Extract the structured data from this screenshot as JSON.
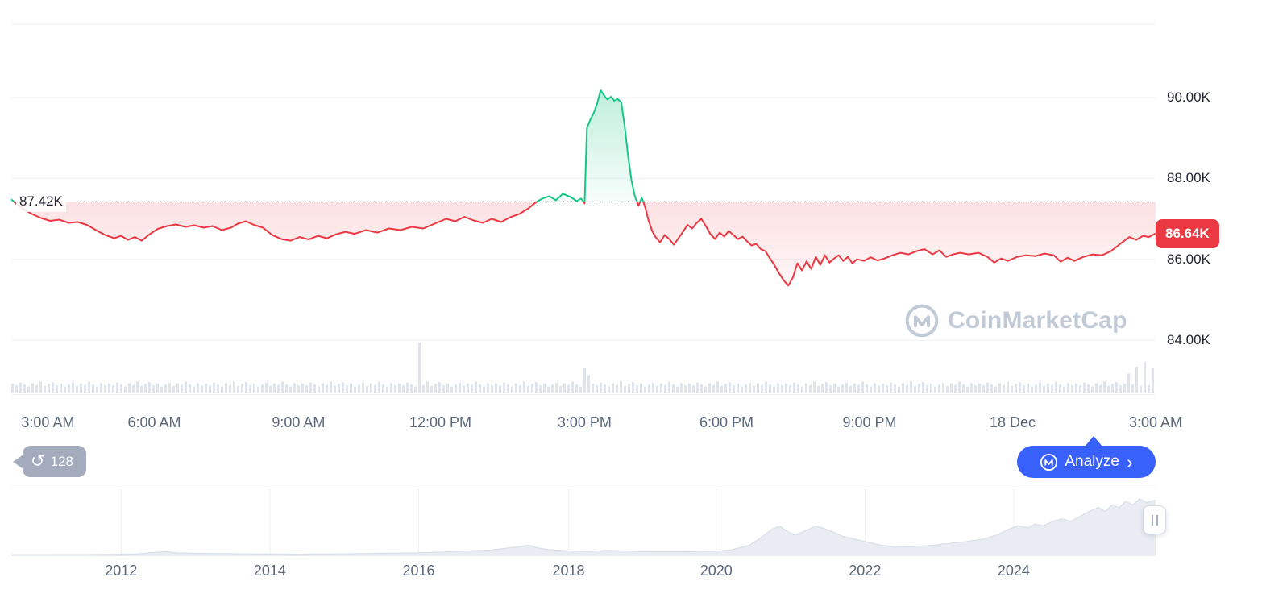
{
  "ui": {
    "history_count": "128",
    "analyze_label": "Analyze",
    "watermark": "CoinMarketCap",
    "icons": {
      "history": "↺",
      "chevron_right": "›"
    }
  },
  "colors": {
    "up": "#16c784",
    "down": "#ea3943",
    "accent_blue": "#3861fb",
    "grid": "#edf0f4",
    "volume": "#dfe3ec",
    "mini_fill": "#e9edf3",
    "mini_stroke": "#d9dee8",
    "axis_text": "#5b6779",
    "price_text": "#222531",
    "pill_bg": "#a3abbd",
    "watermark": "#c3cad7",
    "ref_line": "#4a4f5c",
    "badge_bg": "#ea3943"
  },
  "chart_data": [
    {
      "type": "line",
      "legend": "none",
      "grid": "horizontal",
      "ylim": [
        82.6,
        92.2
      ],
      "y_ticks": [
        {
          "label": "90.00K",
          "value": 90
        },
        {
          "label": "88.00K",
          "value": 88
        },
        {
          "label": "86.00K",
          "value": 86
        },
        {
          "label": "84.00K",
          "value": 84
        }
      ],
      "x_ticks": [
        {
          "label": "3:00 AM",
          "f": 0.032
        },
        {
          "label": "6:00 AM",
          "f": 0.125
        },
        {
          "label": "9:00 AM",
          "f": 0.251
        },
        {
          "label": "12:00 PM",
          "f": 0.375
        },
        {
          "label": "3:00 PM",
          "f": 0.501
        },
        {
          "label": "6:00 PM",
          "f": 0.625
        },
        {
          "label": "9:00 PM",
          "f": 0.75
        },
        {
          "label": "18 Dec",
          "f": 0.875
        },
        {
          "label": "3:00 AM",
          "f": 1.0
        }
      ],
      "ref_line": {
        "label": "87.42K",
        "value": 87.42
      },
      "last_price": {
        "label": "86.64K",
        "value": 86.64
      },
      "points": [
        [
          0.0,
          87.48
        ],
        [
          0.004,
          87.38
        ],
        [
          0.01,
          87.25
        ],
        [
          0.018,
          87.12
        ],
        [
          0.026,
          87.02
        ],
        [
          0.034,
          86.95
        ],
        [
          0.042,
          86.98
        ],
        [
          0.05,
          86.9
        ],
        [
          0.058,
          86.92
        ],
        [
          0.066,
          86.85
        ],
        [
          0.074,
          86.72
        ],
        [
          0.082,
          86.6
        ],
        [
          0.09,
          86.52
        ],
        [
          0.096,
          86.58
        ],
        [
          0.102,
          86.48
        ],
        [
          0.108,
          86.55
        ],
        [
          0.114,
          86.46
        ],
        [
          0.12,
          86.6
        ],
        [
          0.128,
          86.75
        ],
        [
          0.136,
          86.82
        ],
        [
          0.144,
          86.86
        ],
        [
          0.152,
          86.8
        ],
        [
          0.16,
          86.84
        ],
        [
          0.168,
          86.78
        ],
        [
          0.176,
          86.82
        ],
        [
          0.184,
          86.72
        ],
        [
          0.192,
          86.78
        ],
        [
          0.198,
          86.88
        ],
        [
          0.205,
          86.94
        ],
        [
          0.212,
          86.85
        ],
        [
          0.22,
          86.78
        ],
        [
          0.228,
          86.6
        ],
        [
          0.236,
          86.5
        ],
        [
          0.244,
          86.46
        ],
        [
          0.252,
          86.55
        ],
        [
          0.26,
          86.49
        ],
        [
          0.268,
          86.58
        ],
        [
          0.276,
          86.52
        ],
        [
          0.284,
          86.62
        ],
        [
          0.292,
          86.68
        ],
        [
          0.3,
          86.63
        ],
        [
          0.31,
          86.72
        ],
        [
          0.32,
          86.66
        ],
        [
          0.33,
          86.76
        ],
        [
          0.34,
          86.72
        ],
        [
          0.35,
          86.8
        ],
        [
          0.36,
          86.76
        ],
        [
          0.37,
          86.88
        ],
        [
          0.38,
          87.0
        ],
        [
          0.388,
          86.94
        ],
        [
          0.396,
          87.05
        ],
        [
          0.404,
          86.96
        ],
        [
          0.412,
          86.9
        ],
        [
          0.42,
          87.0
        ],
        [
          0.428,
          86.92
        ],
        [
          0.436,
          87.04
        ],
        [
          0.444,
          87.12
        ],
        [
          0.452,
          87.26
        ],
        [
          0.458,
          87.4
        ],
        [
          0.464,
          87.5
        ],
        [
          0.47,
          87.56
        ],
        [
          0.476,
          87.46
        ],
        [
          0.482,
          87.62
        ],
        [
          0.488,
          87.55
        ],
        [
          0.494,
          87.44
        ],
        [
          0.498,
          87.5
        ],
        [
          0.501,
          87.38
        ],
        [
          0.503,
          89.25
        ],
        [
          0.506,
          89.45
        ],
        [
          0.509,
          89.62
        ],
        [
          0.512,
          89.85
        ],
        [
          0.515,
          90.18
        ],
        [
          0.518,
          90.05
        ],
        [
          0.521,
          89.95
        ],
        [
          0.524,
          90.02
        ],
        [
          0.527,
          89.92
        ],
        [
          0.53,
          89.96
        ],
        [
          0.533,
          89.88
        ],
        [
          0.536,
          89.3
        ],
        [
          0.539,
          88.55
        ],
        [
          0.542,
          87.95
        ],
        [
          0.545,
          87.55
        ],
        [
          0.548,
          87.32
        ],
        [
          0.551,
          87.52
        ],
        [
          0.554,
          87.28
        ],
        [
          0.557,
          86.95
        ],
        [
          0.56,
          86.7
        ],
        [
          0.563,
          86.55
        ],
        [
          0.567,
          86.42
        ],
        [
          0.571,
          86.6
        ],
        [
          0.575,
          86.5
        ],
        [
          0.579,
          86.36
        ],
        [
          0.583,
          86.52
        ],
        [
          0.587,
          86.68
        ],
        [
          0.591,
          86.85
        ],
        [
          0.595,
          86.76
        ],
        [
          0.599,
          86.9
        ],
        [
          0.603,
          87.0
        ],
        [
          0.607,
          86.82
        ],
        [
          0.611,
          86.62
        ],
        [
          0.615,
          86.5
        ],
        [
          0.619,
          86.66
        ],
        [
          0.623,
          86.56
        ],
        [
          0.627,
          86.7
        ],
        [
          0.631,
          86.6
        ],
        [
          0.635,
          86.5
        ],
        [
          0.639,
          86.56
        ],
        [
          0.643,
          86.44
        ],
        [
          0.647,
          86.34
        ],
        [
          0.651,
          86.38
        ],
        [
          0.655,
          86.25
        ],
        [
          0.659,
          86.2
        ],
        [
          0.663,
          86.02
        ],
        [
          0.667,
          85.85
        ],
        [
          0.671,
          85.65
        ],
        [
          0.675,
          85.48
        ],
        [
          0.679,
          85.35
        ],
        [
          0.683,
          85.55
        ],
        [
          0.687,
          85.9
        ],
        [
          0.691,
          85.72
        ],
        [
          0.695,
          85.95
        ],
        [
          0.699,
          85.76
        ],
        [
          0.703,
          86.06
        ],
        [
          0.707,
          85.86
        ],
        [
          0.711,
          86.1
        ],
        [
          0.715,
          85.92
        ],
        [
          0.719,
          86.02
        ],
        [
          0.723,
          86.1
        ],
        [
          0.727,
          85.96
        ],
        [
          0.731,
          86.06
        ],
        [
          0.735,
          85.9
        ],
        [
          0.739,
          86.0
        ],
        [
          0.745,
          85.96
        ],
        [
          0.751,
          86.05
        ],
        [
          0.757,
          85.97
        ],
        [
          0.763,
          86.02
        ],
        [
          0.77,
          86.1
        ],
        [
          0.777,
          86.16
        ],
        [
          0.784,
          86.12
        ],
        [
          0.791,
          86.2
        ],
        [
          0.798,
          86.25
        ],
        [
          0.805,
          86.12
        ],
        [
          0.811,
          86.22
        ],
        [
          0.817,
          86.06
        ],
        [
          0.823,
          86.12
        ],
        [
          0.829,
          86.16
        ],
        [
          0.837,
          86.12
        ],
        [
          0.845,
          86.16
        ],
        [
          0.853,
          86.06
        ],
        [
          0.859,
          85.92
        ],
        [
          0.865,
          86.02
        ],
        [
          0.871,
          85.96
        ],
        [
          0.879,
          86.06
        ],
        [
          0.887,
          86.1
        ],
        [
          0.895,
          86.08
        ],
        [
          0.903,
          86.14
        ],
        [
          0.911,
          86.1
        ],
        [
          0.917,
          85.94
        ],
        [
          0.923,
          86.04
        ],
        [
          0.929,
          85.96
        ],
        [
          0.937,
          86.06
        ],
        [
          0.945,
          86.12
        ],
        [
          0.953,
          86.1
        ],
        [
          0.961,
          86.2
        ],
        [
          0.969,
          86.38
        ],
        [
          0.977,
          86.55
        ],
        [
          0.983,
          86.48
        ],
        [
          0.989,
          86.58
        ],
        [
          0.994,
          86.55
        ],
        [
          1.0,
          86.64
        ]
      ],
      "volume": {
        "bar_count": 284,
        "pattern": [
          0.18,
          0.14,
          0.2,
          0.16,
          0.12,
          0.19,
          0.15,
          0.22,
          0.13,
          0.17,
          0.21,
          0.14,
          0.18,
          0.12,
          0.16,
          0.2,
          0.13,
          0.18,
          0.15,
          0.22,
          0.16,
          0.12,
          0.19,
          0.14
        ],
        "spikes": {
          "101": 1.0,
          "142": 0.5,
          "143": 0.35,
          "277": 0.38,
          "279": 0.52,
          "281": 0.62,
          "283": 0.5
        }
      }
    },
    {
      "type": "area",
      "y_scale": "normalized_0_1",
      "x_ticks": [
        {
          "label": "2012",
          "f": 0.096
        },
        {
          "label": "2014",
          "f": 0.226
        },
        {
          "label": "2016",
          "f": 0.356
        },
        {
          "label": "2018",
          "f": 0.487
        },
        {
          "label": "2020",
          "f": 0.616
        },
        {
          "label": "2022",
          "f": 0.746
        },
        {
          "label": "2024",
          "f": 0.876
        }
      ],
      "points": [
        [
          0.0,
          0.01
        ],
        [
          0.02,
          0.01
        ],
        [
          0.04,
          0.012
        ],
        [
          0.06,
          0.012
        ],
        [
          0.08,
          0.015
        ],
        [
          0.096,
          0.018
        ],
        [
          0.11,
          0.022
        ],
        [
          0.125,
          0.045
        ],
        [
          0.135,
          0.06
        ],
        [
          0.145,
          0.04
        ],
        [
          0.16,
          0.032
        ],
        [
          0.18,
          0.028
        ],
        [
          0.2,
          0.024
        ],
        [
          0.226,
          0.02
        ],
        [
          0.25,
          0.018
        ],
        [
          0.27,
          0.02
        ],
        [
          0.29,
          0.024
        ],
        [
          0.31,
          0.028
        ],
        [
          0.33,
          0.034
        ],
        [
          0.356,
          0.04
        ],
        [
          0.38,
          0.055
        ],
        [
          0.4,
          0.07
        ],
        [
          0.42,
          0.085
        ],
        [
          0.44,
          0.13
        ],
        [
          0.452,
          0.16
        ],
        [
          0.46,
          0.12
        ],
        [
          0.47,
          0.09
        ],
        [
          0.487,
          0.07
        ],
        [
          0.505,
          0.06
        ],
        [
          0.52,
          0.08
        ],
        [
          0.535,
          0.072
        ],
        [
          0.55,
          0.06
        ],
        [
          0.57,
          0.055
        ],
        [
          0.59,
          0.058
        ],
        [
          0.616,
          0.065
        ],
        [
          0.63,
          0.09
        ],
        [
          0.645,
          0.16
        ],
        [
          0.655,
          0.28
        ],
        [
          0.665,
          0.42
        ],
        [
          0.672,
          0.46
        ],
        [
          0.678,
          0.38
        ],
        [
          0.685,
          0.32
        ],
        [
          0.695,
          0.4
        ],
        [
          0.703,
          0.465
        ],
        [
          0.71,
          0.43
        ],
        [
          0.718,
          0.37
        ],
        [
          0.727,
          0.3
        ],
        [
          0.746,
          0.22
        ],
        [
          0.76,
          0.16
        ],
        [
          0.775,
          0.13
        ],
        [
          0.79,
          0.14
        ],
        [
          0.805,
          0.16
        ],
        [
          0.82,
          0.19
        ],
        [
          0.835,
          0.22
        ],
        [
          0.85,
          0.26
        ],
        [
          0.862,
          0.33
        ],
        [
          0.872,
          0.42
        ],
        [
          0.88,
          0.47
        ],
        [
          0.888,
          0.44
        ],
        [
          0.895,
          0.5
        ],
        [
          0.902,
          0.47
        ],
        [
          0.91,
          0.54
        ],
        [
          0.918,
          0.58
        ],
        [
          0.926,
          0.54
        ],
        [
          0.934,
          0.62
        ],
        [
          0.942,
          0.7
        ],
        [
          0.95,
          0.76
        ],
        [
          0.956,
          0.7
        ],
        [
          0.962,
          0.8
        ],
        [
          0.968,
          0.76
        ],
        [
          0.974,
          0.86
        ],
        [
          0.98,
          0.8
        ],
        [
          0.986,
          0.9
        ],
        [
          0.992,
          0.84
        ],
        [
          1.0,
          0.88
        ]
      ]
    }
  ]
}
